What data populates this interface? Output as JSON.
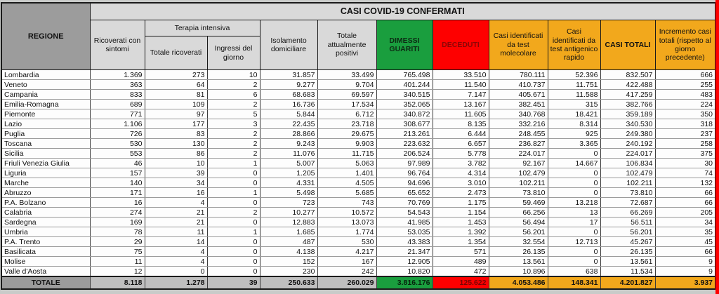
{
  "banner": "CASI COVID-19 CONFERMATI",
  "colors": {
    "green": "#1a9e3e",
    "red": "#fe0000",
    "orange": "#f2a81c",
    "header_gray": "#d9d9d9",
    "dark_gray": "#9c9c9c",
    "total_gray": "#bfbfbf",
    "deceduti_text": "#8b0606"
  },
  "table": {
    "headers": {
      "regione": "REGIONE",
      "ricoverati": "Ricoverati con sintomi",
      "terapia": "Terapia intensiva",
      "totale_ricoverati": "Totale ricoverati",
      "ingressi": "Ingressi del giorno",
      "isolamento": "Isolamento domiciliare",
      "attualmente_positivi": "Totale attualmente positivi",
      "dimessi": "DIMESSI GUARITI",
      "deceduti": "DECEDUTI",
      "molecolare": "Casi identificati da test molecolare",
      "antigenico": "Casi identificati da test antigenico rapido",
      "casi_totali": "CASI TOTALI",
      "incremento": "Incremento casi totali (rispetto al giorno precedente)"
    },
    "column_keys": [
      "ricoverati-con-sintomi",
      "terapia-totale-ricoverati",
      "terapia-ingressi-giorno",
      "isolamento-domiciliare",
      "totale-attualmente-positivi",
      "dimessi-guariti",
      "deceduti",
      "casi-test-molecolare",
      "casi-test-antigenico",
      "casi-totali",
      "incremento-casi-totali"
    ],
    "rows": [
      {
        "regione": "Lombardia",
        "values": [
          "1.369",
          "273",
          "10",
          "31.857",
          "33.499",
          "765.498",
          "33.510",
          "780.111",
          "52.396",
          "832.507",
          "666"
        ]
      },
      {
        "regione": "Veneto",
        "values": [
          "363",
          "64",
          "2",
          "9.277",
          "9.704",
          "401.244",
          "11.540",
          "410.737",
          "11.751",
          "422.488",
          "255"
        ]
      },
      {
        "regione": "Campania",
        "values": [
          "833",
          "81",
          "6",
          "68.683",
          "69.597",
          "340.515",
          "7.147",
          "405.671",
          "11.588",
          "417.259",
          "483"
        ]
      },
      {
        "regione": "Emilia-Romagna",
        "values": [
          "689",
          "109",
          "2",
          "16.736",
          "17.534",
          "352.065",
          "13.167",
          "382.451",
          "315",
          "382.766",
          "224"
        ]
      },
      {
        "regione": "Piemonte",
        "values": [
          "771",
          "97",
          "5",
          "5.844",
          "6.712",
          "340.872",
          "11.605",
          "340.768",
          "18.421",
          "359.189",
          "350"
        ]
      },
      {
        "regione": "Lazio",
        "values": [
          "1.106",
          "177",
          "3",
          "22.435",
          "23.718",
          "308.677",
          "8.135",
          "332.216",
          "8.314",
          "340.530",
          "318"
        ]
      },
      {
        "regione": "Puglia",
        "values": [
          "726",
          "83",
          "2",
          "28.866",
          "29.675",
          "213.261",
          "6.444",
          "248.455",
          "925",
          "249.380",
          "237"
        ]
      },
      {
        "regione": "Toscana",
        "values": [
          "530",
          "130",
          "2",
          "9.243",
          "9.903",
          "223.632",
          "6.657",
          "236.827",
          "3.365",
          "240.192",
          "258"
        ]
      },
      {
        "regione": "Sicilia",
        "values": [
          "553",
          "86",
          "2",
          "11.076",
          "11.715",
          "206.524",
          "5.778",
          "224.017",
          "0",
          "224.017",
          "375"
        ]
      },
      {
        "regione": "Friuli Venezia Giulia",
        "values": [
          "46",
          "10",
          "1",
          "5.007",
          "5.063",
          "97.989",
          "3.782",
          "92.167",
          "14.667",
          "106.834",
          "30"
        ]
      },
      {
        "regione": "Liguria",
        "values": [
          "157",
          "39",
          "0",
          "1.205",
          "1.401",
          "96.764",
          "4.314",
          "102.479",
          "0",
          "102.479",
          "74"
        ]
      },
      {
        "regione": "Marche",
        "values": [
          "140",
          "34",
          "0",
          "4.331",
          "4.505",
          "94.696",
          "3.010",
          "102.211",
          "0",
          "102.211",
          "132"
        ]
      },
      {
        "regione": "Abruzzo",
        "values": [
          "171",
          "16",
          "1",
          "5.498",
          "5.685",
          "65.652",
          "2.473",
          "73.810",
          "0",
          "73.810",
          "66"
        ]
      },
      {
        "regione": "P.A. Bolzano",
        "values": [
          "16",
          "4",
          "0",
          "723",
          "743",
          "70.769",
          "1.175",
          "59.469",
          "13.218",
          "72.687",
          "66"
        ]
      },
      {
        "regione": "Calabria",
        "values": [
          "274",
          "21",
          "2",
          "10.277",
          "10.572",
          "54.543",
          "1.154",
          "66.256",
          "13",
          "66.269",
          "205"
        ]
      },
      {
        "regione": "Sardegna",
        "values": [
          "169",
          "21",
          "0",
          "12.883",
          "13.073",
          "41.985",
          "1.453",
          "56.494",
          "17",
          "56.511",
          "34"
        ]
      },
      {
        "regione": "Umbria",
        "values": [
          "78",
          "11",
          "1",
          "1.685",
          "1.774",
          "53.035",
          "1.392",
          "56.201",
          "0",
          "56.201",
          "35"
        ]
      },
      {
        "regione": "P.A. Trento",
        "values": [
          "29",
          "14",
          "0",
          "487",
          "530",
          "43.383",
          "1.354",
          "32.554",
          "12.713",
          "45.267",
          "45"
        ]
      },
      {
        "regione": "Basilicata",
        "values": [
          "75",
          "4",
          "0",
          "4.138",
          "4.217",
          "21.347",
          "571",
          "26.135",
          "0",
          "26.135",
          "66"
        ]
      },
      {
        "regione": "Molise",
        "values": [
          "11",
          "4",
          "0",
          "152",
          "167",
          "12.905",
          "489",
          "13.561",
          "0",
          "13.561",
          "9"
        ]
      },
      {
        "regione": "Valle d'Aosta",
        "values": [
          "12",
          "0",
          "0",
          "230",
          "242",
          "10.820",
          "472",
          "10.896",
          "638",
          "11.534",
          "9"
        ]
      }
    ],
    "total_row": {
      "label": "TOTALE",
      "values": [
        "8.118",
        "1.278",
        "39",
        "250.633",
        "260.029",
        "3.816.176",
        "125.622",
        "4.053.486",
        "148.341",
        "4.201.827",
        "3.937"
      ]
    }
  }
}
